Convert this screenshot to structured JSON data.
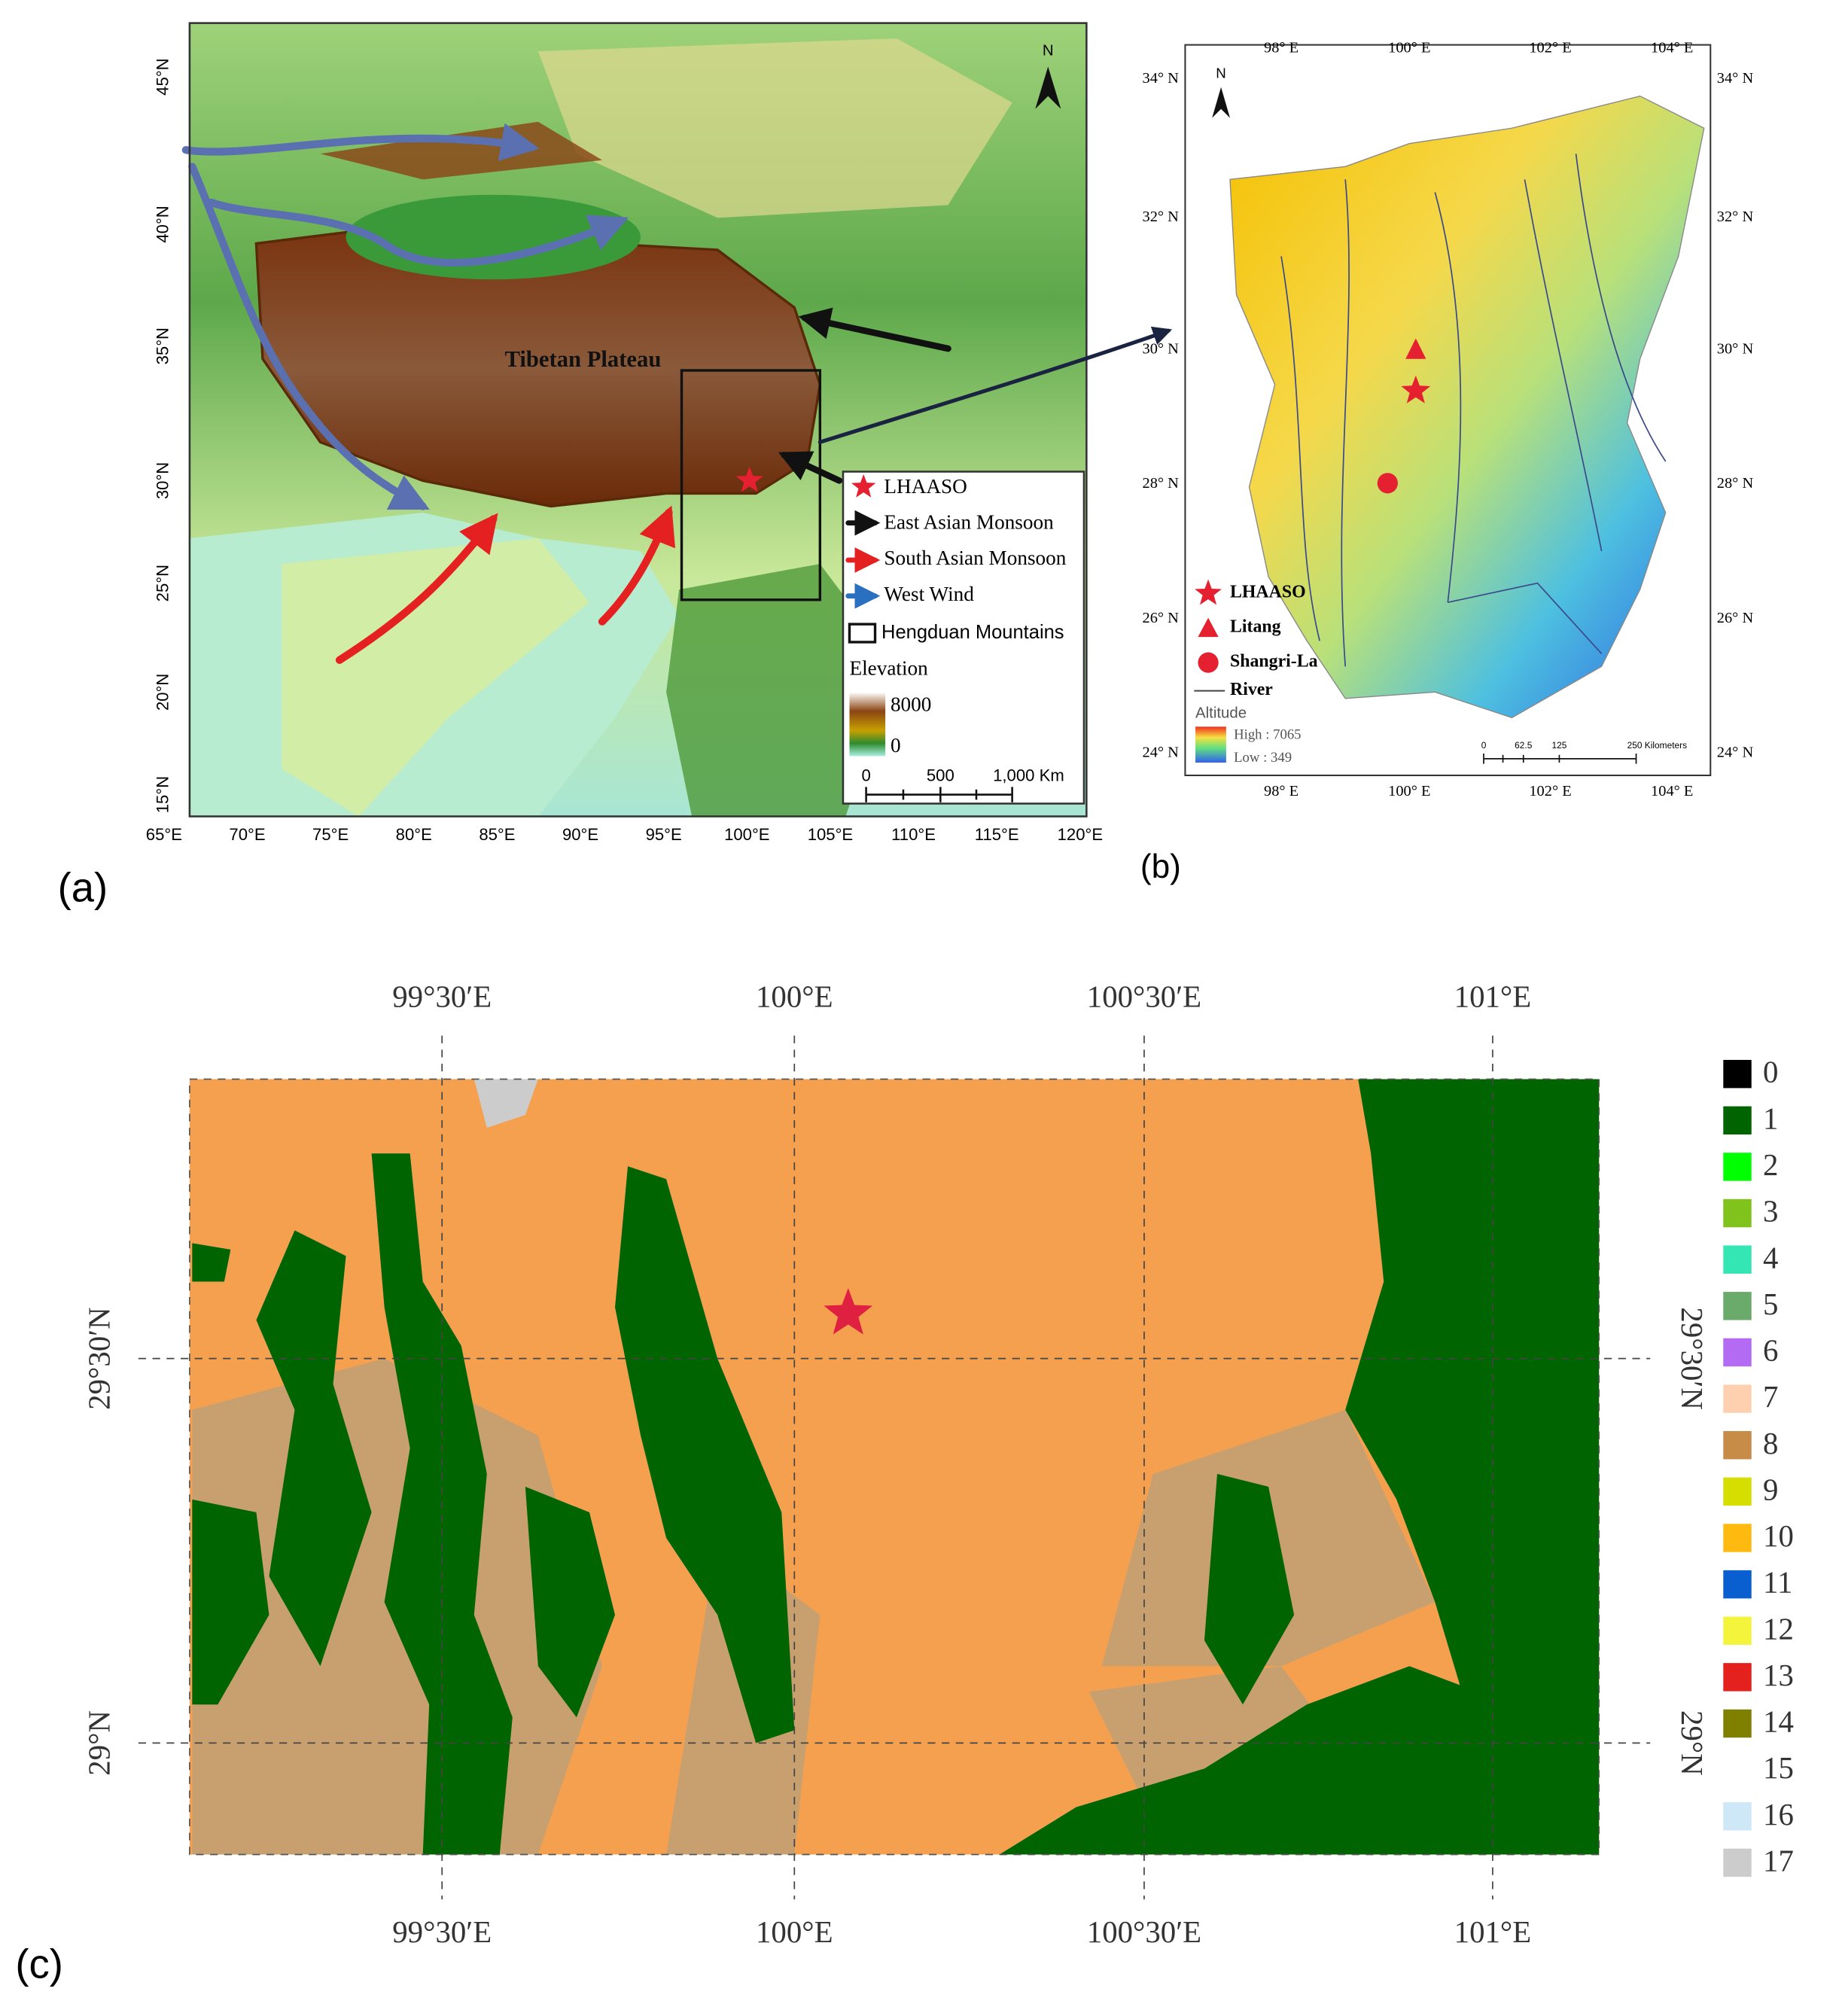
{
  "panel_a": {
    "label": "(a)",
    "region_label": "Tibetan Plateau",
    "north": "N",
    "x_ticks": [
      "65°E",
      "70°E",
      "75°E",
      "80°E",
      "85°E",
      "90°E",
      "95°E",
      "100°E",
      "105°E",
      "110°E",
      "115°E",
      "120°E"
    ],
    "y_ticks": [
      "45°N",
      "40°N",
      "35°N",
      "30°N",
      "25°N",
      "20°N",
      "15°N"
    ],
    "legend": {
      "items": [
        "LHAASO",
        "East Asian Monsoon",
        "South Asian Monsoon",
        "West Wind",
        "Hengduan Mountains"
      ],
      "elevation_title": "Elevation",
      "elevation_high": "8000",
      "elevation_low": "0",
      "scale": [
        "0",
        "500",
        "1,000 Km"
      ]
    }
  },
  "panel_b": {
    "label": "(b)",
    "north": "N",
    "x_ticks": [
      "98° E",
      "100° E",
      "102° E",
      "104° E"
    ],
    "y_ticks": [
      "34° N",
      "32° N",
      "30° N",
      "28° N",
      "26° N",
      "24° N"
    ],
    "legend": {
      "items": [
        "LHAASO",
        "Litang",
        "Shangri-La",
        "River"
      ],
      "altitude_title": "Altitude",
      "high": "High : 7065",
      "low": "Low : 349"
    },
    "scale": [
      "0",
      "62.5",
      "125",
      "250 Kilometers"
    ]
  },
  "panel_c": {
    "label": "(c)",
    "x_ticks": [
      "99°30′E",
      "100°E",
      "100°30′E",
      "101°E"
    ],
    "y_ticks": [
      "29°30′N",
      "29°N"
    ],
    "classes": [
      {
        "label": "0",
        "color": "#000000"
      },
      {
        "label": "1",
        "color": "#006400"
      },
      {
        "label": "2",
        "color": "#00ff00"
      },
      {
        "label": "3",
        "color": "#7fc31c"
      },
      {
        "label": "4",
        "color": "#33e6b4"
      },
      {
        "label": "5",
        "color": "#6aaa6a"
      },
      {
        "label": "6",
        "color": "#b26bf2"
      },
      {
        "label": "7",
        "color": "#ffd0b0"
      },
      {
        "label": "8",
        "color": "#c68c48"
      },
      {
        "label": "9",
        "color": "#d6de00"
      },
      {
        "label": "10",
        "color": "#ffb90f"
      },
      {
        "label": "11",
        "color": "#0a5fd0"
      },
      {
        "label": "12",
        "color": "#f4f43c"
      },
      {
        "label": "13",
        "color": "#e5211e"
      },
      {
        "label": "14",
        "color": "#7f7f00"
      },
      {
        "label": "15",
        "color": "#ffffff"
      },
      {
        "label": "16",
        "color": "#cfe8f7"
      },
      {
        "label": "17",
        "color": "#cccccc"
      }
    ]
  }
}
